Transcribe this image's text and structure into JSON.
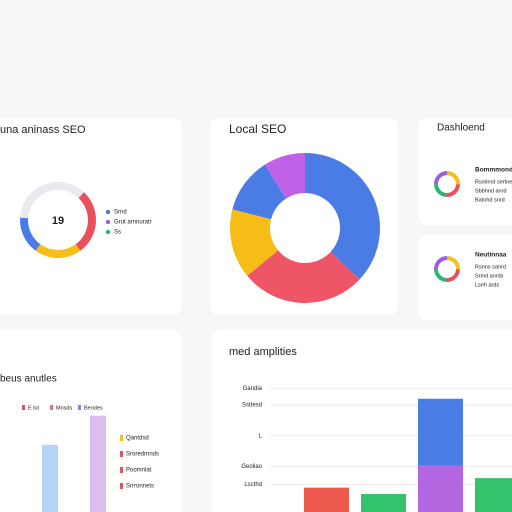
{
  "chart_data": [
    {
      "type": "pie",
      "title": "una aninass SEO",
      "center_label": "19",
      "values": [
        12,
        28,
        20,
        16,
        24
      ],
      "colors": [
        "#e9e9ee",
        "#e8505b",
        "#f5be19",
        "#4b7be5",
        "#e9e9ee"
      ],
      "legend": [
        {
          "name": "Srnd",
          "color": "#4b7be5"
        },
        {
          "name": "Grut arnnuratr",
          "color": "#9b5de5"
        },
        {
          "name": "Ss",
          "color": "#2bb673"
        }
      ]
    },
    {
      "type": "pie",
      "title": "Local SEO",
      "values": [
        37,
        27,
        15,
        12,
        9
      ],
      "colors": [
        "#4b7be5",
        "#ee5567",
        "#f6bd16",
        "#4b7be5",
        "#c062e8"
      ]
    },
    {
      "type": "bar",
      "title": "beus anutles",
      "categories": [
        null,
        null
      ],
      "values": [
        60,
        86
      ],
      "colors": [
        "#a9cdf3",
        "#d6b3f0"
      ],
      "ylim": [
        0,
        100
      ],
      "legend": [
        {
          "name": "E lut",
          "color": "#e8505b"
        },
        {
          "name": "Mosds",
          "color": "#e86a8a"
        },
        {
          "name": "Beodes",
          "color": "#b06ee6"
        }
      ],
      "list_legend": [
        {
          "name": "Qantdsd",
          "color": "#f5be19"
        },
        {
          "name": "Sroredrnnds",
          "color": "#e8505b"
        },
        {
          "name": "Poomnlat",
          "color": "#e8505b"
        },
        {
          "name": "Srrronnets",
          "color": "#e8505b"
        }
      ]
    },
    {
      "type": "bar",
      "title": "med amplities",
      "categories": [
        null,
        null,
        null,
        null
      ],
      "ylim": [
        0,
        120
      ],
      "yticks": [
        {
          "value": 117,
          "label": "Gandia"
        },
        {
          "value": 101,
          "label": "Ssttesd"
        },
        {
          "value": 72,
          "label": "L"
        },
        {
          "value": 43,
          "label": "Geoliao"
        },
        {
          "value": 26,
          "label": "Lscthd"
        }
      ],
      "series": [
        {
          "colors": [
            "#ef5a4f",
            "#34c26d",
            "#b366e0",
            "#34c26d"
          ],
          "values": [
            23,
            17,
            44,
            32
          ]
        },
        {
          "color": "#4a7de6",
          "values": [
            null,
            null,
            63,
            null
          ]
        }
      ]
    }
  ],
  "side_card": {
    "title": "Dashloend",
    "items": [
      {
        "title": "Bommmond",
        "lines": [
          "Rsmlnrd sertne",
          "Sbbhnd anrd",
          "Batohd snrd"
        ]
      },
      {
        "title": "Neutinnaa",
        "lines": [
          "Rsnns sanrd",
          "Srmd anrds",
          "Lseh ards"
        ]
      }
    ]
  }
}
